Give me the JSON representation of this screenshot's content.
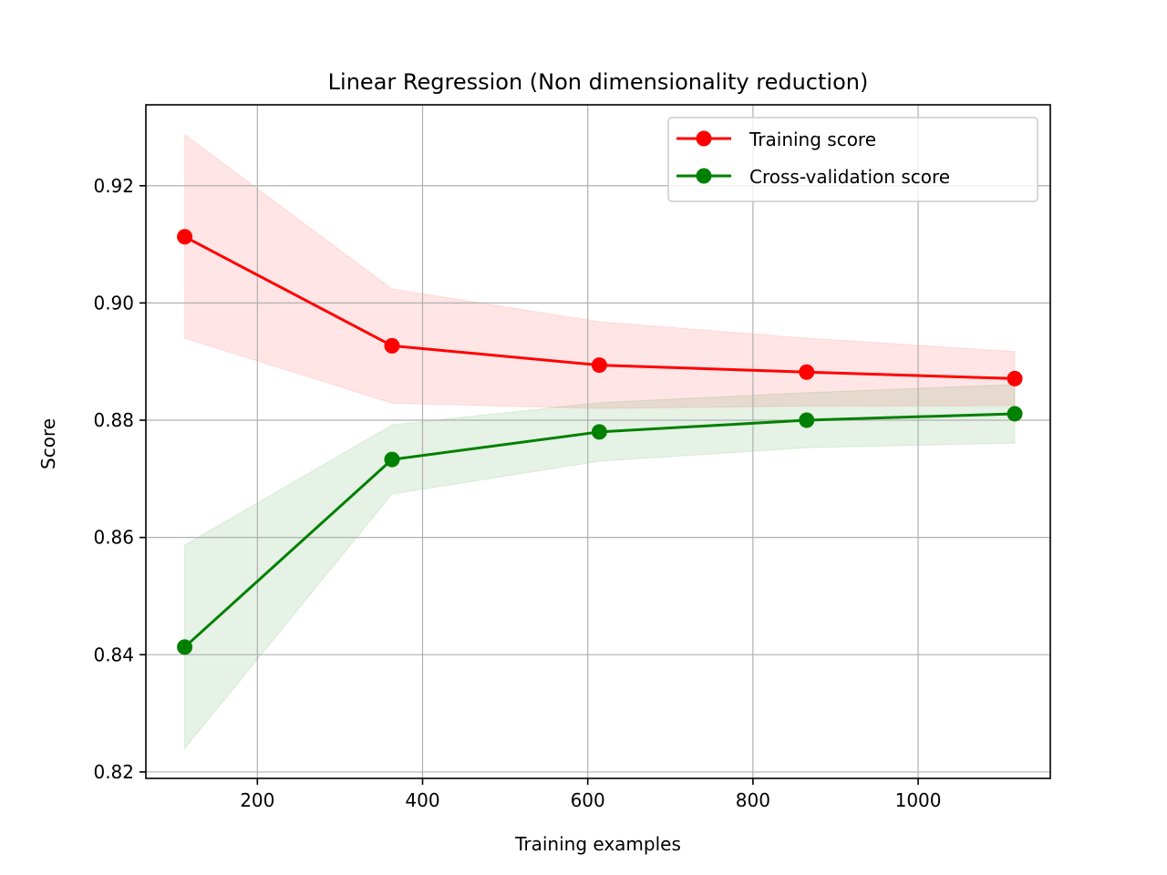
{
  "chart_data": {
    "type": "line",
    "title": "Linear Regression (Non dimensionality reduction)",
    "xlabel": "Training examples",
    "ylabel": "Score",
    "xlim": [
      65,
      1160
    ],
    "ylim": [
      0.8189,
      0.9338
    ],
    "xticks": [
      200,
      400,
      600,
      800,
      1000
    ],
    "yticks": [
      0.82,
      0.84,
      0.86,
      0.88,
      0.9,
      0.92
    ],
    "xtick_labels": [
      "200",
      "400",
      "600",
      "800",
      "1000"
    ],
    "ytick_labels": [
      "0.82",
      "0.84",
      "0.86",
      "0.88",
      "0.90",
      "0.92"
    ],
    "grid": true,
    "legend_position": "top-right",
    "x": [
      112,
      363,
      614,
      865,
      1117
    ],
    "series": [
      {
        "name": "Training score",
        "color": "#ff0000",
        "fill_color": "#ffd6d6",
        "values": [
          0.9113,
          0.8927,
          0.8894,
          0.8882,
          0.8871
        ],
        "upper": [
          0.9287,
          0.9024,
          0.8968,
          0.894,
          0.8917
        ],
        "lower": [
          0.894,
          0.8829,
          0.882,
          0.8824,
          0.8825
        ]
      },
      {
        "name": "Cross-validation score",
        "color": "#008000",
        "fill_color": "#cce6cc",
        "values": [
          0.8413,
          0.8733,
          0.878,
          0.88,
          0.8811
        ],
        "upper": [
          0.8587,
          0.8792,
          0.883,
          0.8847,
          0.8861
        ],
        "lower": [
          0.824,
          0.8674,
          0.873,
          0.8753,
          0.8761
        ]
      }
    ]
  }
}
